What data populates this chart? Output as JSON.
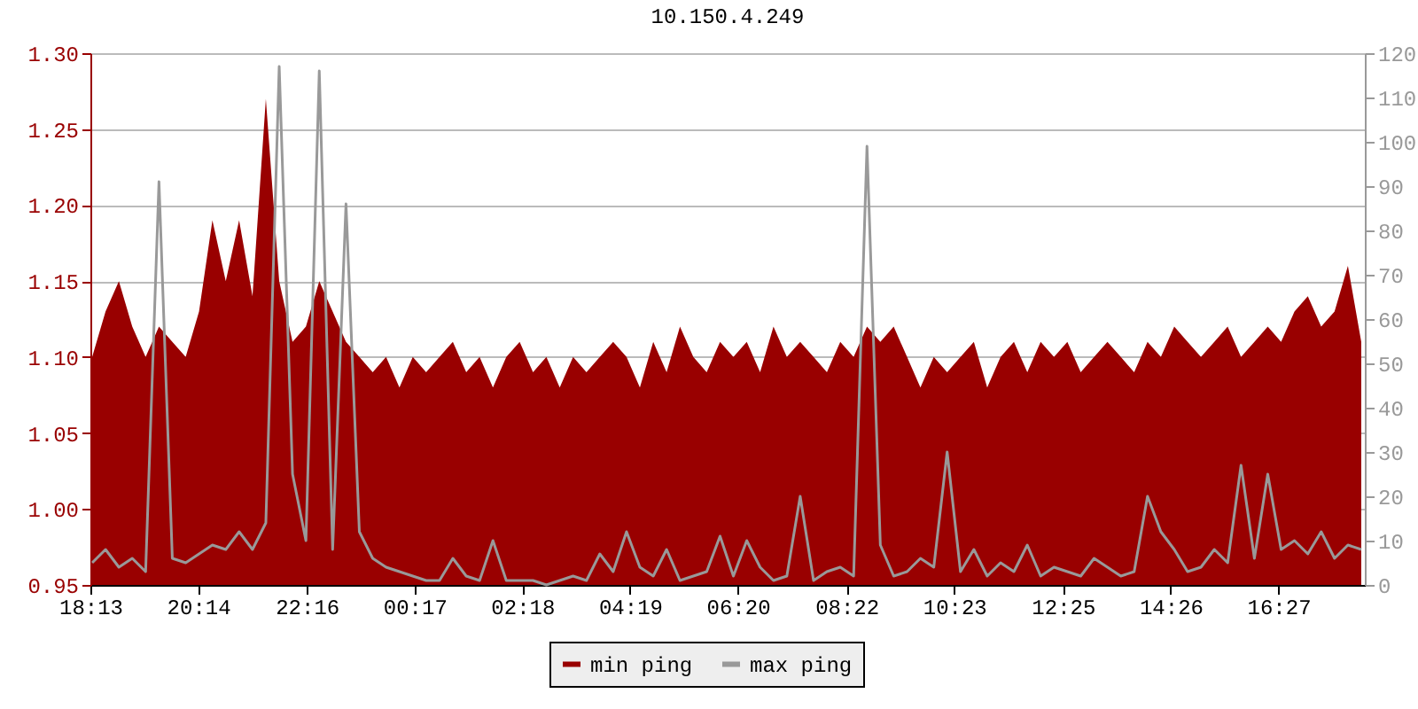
{
  "chart_data": {
    "type": "area",
    "title": "10.150.4.249",
    "x": [
      "--01-01T18:15",
      "--01-01T18:30",
      "--01-01T18:45",
      "--01-01T19:00",
      "--01-01T19:15",
      "--01-01T19:30",
      "--01-01T19:45",
      "--01-01T20:00",
      "--01-01T20:15",
      "--01-01T20:30",
      "--01-01T20:45",
      "--01-01T21:00",
      "--01-01T21:15",
      "--01-01T21:30",
      "--01-01T21:45",
      "--01-01T22:00",
      "--01-01T22:15",
      "--01-01T22:30",
      "--01-01T22:45",
      "--01-01T23:00",
      "--01-01T23:15",
      "--01-01T23:30",
      "--01-01T23:45",
      "--01-02T00:00",
      "--01-02T00:15",
      "--01-02T00:30",
      "--01-02T00:45",
      "--01-02T01:00",
      "--01-02T01:15",
      "--01-02T01:30",
      "--01-02T01:45",
      "--01-02T02:00",
      "--01-02T02:15",
      "--01-02T02:30",
      "--01-02T02:45",
      "--01-02T03:00",
      "--01-02T03:15",
      "--01-02T03:30",
      "--01-02T03:45",
      "--01-02T04:00",
      "--01-02T04:15",
      "--01-02T04:30",
      "--01-02T04:45",
      "--01-02T05:00",
      "--01-02T05:15",
      "--01-02T05:30",
      "--01-02T05:45",
      "--01-02T06:00",
      "--01-02T06:15",
      "--01-02T06:30",
      "--01-02T06:45",
      "--01-02T07:00",
      "--01-02T07:15",
      "--01-02T07:30",
      "--01-02T07:45",
      "--01-02T08:00",
      "--01-02T08:15",
      "--01-02T08:30",
      "--01-02T08:45",
      "--01-02T09:00",
      "--01-02T09:15",
      "--01-02T09:30",
      "--01-02T09:45",
      "--01-02T10:00",
      "--01-02T10:15",
      "--01-02T10:30",
      "--01-02T10:45",
      "--01-02T11:00",
      "--01-02T11:15",
      "--01-02T11:30",
      "--01-02T11:45",
      "--01-02T12:00",
      "--01-02T12:15",
      "--01-02T12:30",
      "--01-02T12:45",
      "--01-02T13:00",
      "--01-02T13:15",
      "--01-02T13:30",
      "--01-02T13:45",
      "--01-02T14:00",
      "--01-02T14:15",
      "--01-02T14:30",
      "--01-02T14:45",
      "--01-02T15:00",
      "--01-02T15:15",
      "--01-02T15:30",
      "--01-02T15:45",
      "--01-02T16:00",
      "--01-02T16:15",
      "--01-02T16:30",
      "--01-02T16:45",
      "--01-02T17:00",
      "--01-02T17:15",
      "--01-02T17:30",
      "--01-02T17:45",
      "--01-02T18:00"
    ],
    "series": [
      {
        "name": "min ping",
        "color": "#990000",
        "values": [
          1.1,
          1.13,
          1.15,
          1.12,
          1.1,
          1.12,
          1.11,
          1.1,
          1.13,
          1.19,
          1.15,
          1.19,
          1.14,
          1.27,
          1.15,
          1.11,
          1.12,
          1.15,
          1.13,
          1.11,
          1.1,
          1.09,
          1.1,
          1.08,
          1.1,
          1.09,
          1.1,
          1.11,
          1.09,
          1.1,
          1.08,
          1.1,
          1.11,
          1.09,
          1.1,
          1.08,
          1.1,
          1.09,
          1.1,
          1.11,
          1.1,
          1.08,
          1.11,
          1.09,
          1.12,
          1.1,
          1.09,
          1.11,
          1.1,
          1.11,
          1.09,
          1.12,
          1.1,
          1.11,
          1.1,
          1.09,
          1.11,
          1.1,
          1.12,
          1.11,
          1.12,
          1.1,
          1.08,
          1.1,
          1.09,
          1.1,
          1.11,
          1.08,
          1.1,
          1.11,
          1.09,
          1.11,
          1.1,
          1.11,
          1.09,
          1.1,
          1.11,
          1.1,
          1.09,
          1.11,
          1.1,
          1.12,
          1.11,
          1.1,
          1.11,
          1.12,
          1.1,
          1.11,
          1.12,
          1.11,
          1.13,
          1.14,
          1.12,
          1.13,
          1.16,
          1.11
        ]
      },
      {
        "name": "max ping",
        "type": "line",
        "axis": "y2",
        "color": "#999999",
        "values": [
          5,
          8,
          4,
          6,
          3,
          91,
          6,
          5,
          7,
          9,
          8,
          12,
          8,
          14,
          117,
          25,
          10,
          116,
          8,
          86,
          12,
          6,
          4,
          3,
          2,
          1,
          1,
          6,
          2,
          1,
          10,
          1,
          1,
          1,
          0,
          1,
          2,
          1,
          7,
          3,
          12,
          4,
          2,
          8,
          1,
          2,
          3,
          11,
          2,
          10,
          4,
          1,
          2,
          20,
          1,
          3,
          4,
          2,
          99,
          9,
          2,
          3,
          6,
          4,
          30,
          3,
          8,
          2,
          5,
          3,
          9,
          2,
          4,
          3,
          2,
          6,
          4,
          2,
          3,
          20,
          12,
          8,
          3,
          4,
          8,
          5,
          27,
          6,
          25,
          8,
          10,
          7,
          12,
          6,
          9,
          8
        ]
      }
    ],
    "xlim": [
      "--01-01T18:13",
      "--01-02T18:04"
    ],
    "xticks": [
      {
        "value": "--01-01T18:13",
        "label": "18:13"
      },
      {
        "value": "--01-01T20:14",
        "label": "20:14"
      },
      {
        "value": "--01-01T22:16",
        "label": "22:16"
      },
      {
        "value": "--01-02T00:17",
        "label": "00:17"
      },
      {
        "value": "--01-02T02:18",
        "label": "02:18"
      },
      {
        "value": "--01-02T04:19",
        "label": "04:19"
      },
      {
        "value": "--01-02T06:20",
        "label": "06:20"
      },
      {
        "value": "--01-02T08:22",
        "label": "08:22"
      },
      {
        "value": "--01-02T10:23",
        "label": "10:23"
      },
      {
        "value": "--01-02T12:25",
        "label": "12:25"
      },
      {
        "value": "--01-02T14:26",
        "label": "14:26"
      },
      {
        "value": "--01-02T16:27",
        "label": "16:27"
      }
    ],
    "ylim": [
      0.95,
      1.3
    ],
    "yticks": [
      {
        "value": 0.95,
        "label": "0.95"
      },
      {
        "value": 1.0,
        "label": "1.00"
      },
      {
        "value": 1.05,
        "label": "1.05"
      },
      {
        "value": 1.1,
        "label": "1.10"
      },
      {
        "value": 1.15,
        "label": "1.15"
      },
      {
        "value": 1.2,
        "label": "1.20"
      },
      {
        "value": 1.25,
        "label": "1.25"
      },
      {
        "value": 1.3,
        "label": "1.30"
      }
    ],
    "y2lim": [
      0,
      120
    ],
    "y2ticks": [
      0,
      10,
      20,
      30,
      40,
      50,
      60,
      70,
      80,
      90,
      100,
      110,
      120
    ],
    "grid": "y",
    "legend": "bottom"
  }
}
